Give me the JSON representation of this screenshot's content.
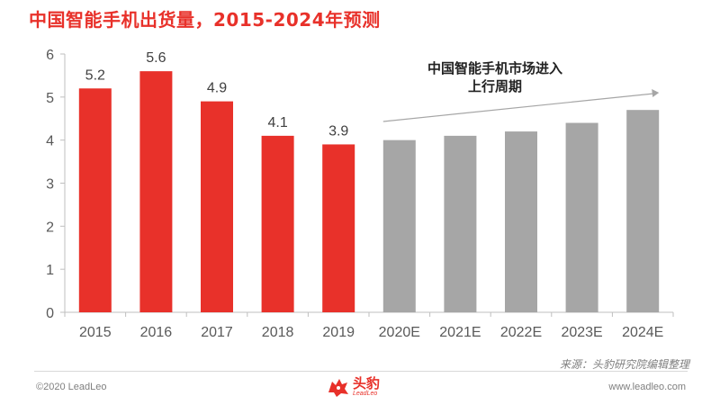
{
  "header": {
    "title": "中国智能手机出货量，2015-2024年预测"
  },
  "annotation": {
    "text": "中国智能手机市场进入上行周期"
  },
  "source": {
    "text": "来源：头豹研究院编辑整理"
  },
  "footer": {
    "copyright": "©2020 LeadLeo",
    "website": "www.leadleo.com"
  },
  "logo": {
    "cn": "头豹",
    "en": "LeadLeo"
  },
  "colors": {
    "actual": "#e8312a",
    "forecast": "#a6a6a6",
    "title": "#e8312a"
  },
  "chart_data": {
    "type": "bar",
    "categories": [
      "2015",
      "2016",
      "2017",
      "2018",
      "2019",
      "2020E",
      "2021E",
      "2022E",
      "2023E",
      "2024E"
    ],
    "values": [
      5.2,
      5.6,
      4.9,
      4.1,
      3.9,
      4.0,
      4.1,
      4.2,
      4.4,
      4.7
    ],
    "data_labels": [
      "5.2",
      "5.6",
      "4.9",
      "4.1",
      "3.9",
      "",
      "",
      "",
      "",
      ""
    ],
    "kinds": [
      "actual",
      "actual",
      "actual",
      "actual",
      "actual",
      "forecast",
      "forecast",
      "forecast",
      "forecast",
      "forecast"
    ],
    "y_ticks": [
      "0",
      "1",
      "2",
      "3",
      "4",
      "5",
      "6"
    ],
    "ylim": [
      0,
      6
    ],
    "title": "中国智能手机出货量，2015-2024年预测",
    "xlabel": "",
    "ylabel": "",
    "grid": false,
    "legend": "none"
  }
}
